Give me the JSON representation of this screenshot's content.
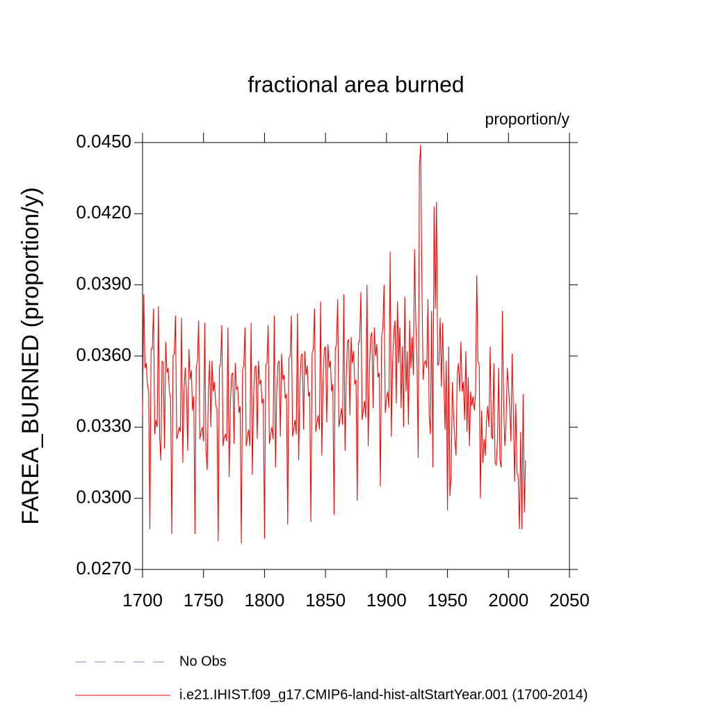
{
  "chart_data": {
    "type": "line",
    "title": "fractional area burned",
    "subtitle": "proportion/y",
    "y_label": "FAREA_BURNED  (proportion/y)",
    "xlim": [
      1700,
      2050
    ],
    "xticks": [
      1700,
      1750,
      1800,
      1850,
      1900,
      1950,
      2000,
      2050
    ],
    "ylim": [
      0.027,
      0.045
    ],
    "yticks": [
      {
        "value": 0.027,
        "label": "0.0270"
      },
      {
        "value": 0.03,
        "label": "0.0300"
      },
      {
        "value": 0.033,
        "label": "0.0330"
      },
      {
        "value": 0.036,
        "label": "0.0360"
      },
      {
        "value": 0.039,
        "label": "0.0390"
      },
      {
        "value": 0.042,
        "label": "0.0420"
      },
      {
        "value": 0.045,
        "label": "0.0450"
      }
    ],
    "x": [
      1700,
      1701,
      1702,
      1703,
      1704,
      1705,
      1706,
      1707,
      1708,
      1709,
      1710,
      1711,
      1712,
      1713,
      1714,
      1715,
      1716,
      1717,
      1718,
      1719,
      1720,
      1721,
      1722,
      1723,
      1724,
      1725,
      1726,
      1727,
      1728,
      1729,
      1730,
      1731,
      1732,
      1733,
      1734,
      1735,
      1736,
      1737,
      1738,
      1739,
      1740,
      1741,
      1742,
      1743,
      1744,
      1745,
      1746,
      1747,
      1748,
      1749,
      1750,
      1751,
      1752,
      1753,
      1754,
      1755,
      1756,
      1757,
      1758,
      1759,
      1760,
      1761,
      1762,
      1763,
      1764,
      1765,
      1766,
      1767,
      1768,
      1769,
      1770,
      1771,
      1772,
      1773,
      1774,
      1775,
      1776,
      1777,
      1778,
      1779,
      1780,
      1781,
      1782,
      1783,
      1784,
      1785,
      1786,
      1787,
      1788,
      1789,
      1790,
      1791,
      1792,
      1793,
      1794,
      1795,
      1796,
      1797,
      1798,
      1799,
      1800,
      1801,
      1802,
      1803,
      1804,
      1805,
      1806,
      1807,
      1808,
      1809,
      1810,
      1811,
      1812,
      1813,
      1814,
      1815,
      1816,
      1817,
      1818,
      1819,
      1820,
      1821,
      1822,
      1823,
      1824,
      1825,
      1826,
      1827,
      1828,
      1829,
      1830,
      1831,
      1832,
      1833,
      1834,
      1835,
      1836,
      1837,
      1838,
      1839,
      1840,
      1841,
      1842,
      1843,
      1844,
      1845,
      1846,
      1847,
      1848,
      1849,
      1850,
      1851,
      1852,
      1853,
      1854,
      1855,
      1856,
      1857,
      1858,
      1859,
      1860,
      1861,
      1862,
      1863,
      1864,
      1865,
      1866,
      1867,
      1868,
      1869,
      1870,
      1871,
      1872,
      1873,
      1874,
      1875,
      1876,
      1877,
      1878,
      1879,
      1880,
      1881,
      1882,
      1883,
      1884,
      1885,
      1886,
      1887,
      1888,
      1889,
      1890,
      1891,
      1892,
      1893,
      1894,
      1895,
      1896,
      1897,
      1898,
      1899,
      1900,
      1901,
      1902,
      1903,
      1904,
      1905,
      1906,
      1907,
      1908,
      1909,
      1910,
      1911,
      1912,
      1913,
      1914,
      1915,
      1916,
      1917,
      1918,
      1919,
      1920,
      1921,
      1922,
      1923,
      1924,
      1925,
      1926,
      1927,
      1928,
      1929,
      1930,
      1931,
      1932,
      1933,
      1934,
      1935,
      1936,
      1937,
      1938,
      1939,
      1940,
      1941,
      1942,
      1943,
      1944,
      1945,
      1946,
      1947,
      1948,
      1949,
      1950,
      1951,
      1952,
      1953,
      1954,
      1955,
      1956,
      1957,
      1958,
      1959,
      1960,
      1961,
      1962,
      1963,
      1964,
      1965,
      1966,
      1967,
      1968,
      1969,
      1970,
      1971,
      1972,
      1973,
      1974,
      1975,
      1976,
      1977,
      1978,
      1979,
      1980,
      1981,
      1982,
      1983,
      1984,
      1985,
      1986,
      1987,
      1988,
      1989,
      1990,
      1991,
      1992,
      1993,
      1994,
      1995,
      1996,
      1997,
      1998,
      1999,
      2000,
      2001,
      2002,
      2003,
      2004,
      2005,
      2006,
      2007,
      2008,
      2009,
      2010,
      2011,
      2012,
      2013,
      2014
    ],
    "series": [
      {
        "name": "No Obs",
        "color": "#8a84c4",
        "dash": true
      },
      {
        "name": "i.e21.IHIST.f09_g17.CMIP6-land-hist-altStartYear.001 (1700-2014)",
        "color": "#ff0000",
        "values": [
          0.0335,
          0.0386,
          0.0355,
          0.0357,
          0.0348,
          0.0345,
          0.0287,
          0.0363,
          0.0363,
          0.038,
          0.0327,
          0.0333,
          0.033,
          0.0381,
          0.0326,
          0.0316,
          0.0358,
          0.0357,
          0.0321,
          0.0366,
          0.0353,
          0.0355,
          0.0345,
          0.0342,
          0.0285,
          0.036,
          0.0361,
          0.0377,
          0.0325,
          0.0327,
          0.033,
          0.0328,
          0.0376,
          0.0315,
          0.0345,
          0.0355,
          0.0345,
          0.032,
          0.0363,
          0.035,
          0.0354,
          0.0337,
          0.0343,
          0.0285,
          0.0355,
          0.0358,
          0.0375,
          0.0325,
          0.0328,
          0.033,
          0.0324,
          0.0374,
          0.032,
          0.0312,
          0.0345,
          0.0358,
          0.033,
          0.0358,
          0.0345,
          0.0349,
          0.0339,
          0.0338,
          0.0282,
          0.0355,
          0.0357,
          0.0373,
          0.0322,
          0.0326,
          0.0327,
          0.0324,
          0.0372,
          0.0309,
          0.034,
          0.0352,
          0.0353,
          0.0323,
          0.0357,
          0.0346,
          0.0347,
          0.0336,
          0.0339,
          0.0281,
          0.0354,
          0.0356,
          0.0372,
          0.0322,
          0.0326,
          0.0329,
          0.0322,
          0.0374,
          0.031,
          0.0342,
          0.0355,
          0.0356,
          0.0325,
          0.0358,
          0.0348,
          0.035,
          0.034,
          0.0342,
          0.0283,
          0.0356,
          0.0357,
          0.0373,
          0.0323,
          0.0327,
          0.033,
          0.0325,
          0.0377,
          0.0313,
          0.0345,
          0.0357,
          0.0358,
          0.0326,
          0.0361,
          0.035,
          0.0352,
          0.0342,
          0.0344,
          0.0289,
          0.0359,
          0.036,
          0.0377,
          0.0326,
          0.0329,
          0.0333,
          0.0327,
          0.0378,
          0.0316,
          0.0347,
          0.036,
          0.0361,
          0.0329,
          0.0362,
          0.0352,
          0.0356,
          0.0343,
          0.0345,
          0.029,
          0.0361,
          0.0363,
          0.038,
          0.0328,
          0.0332,
          0.0335,
          0.0329,
          0.0383,
          0.0318,
          0.0349,
          0.0363,
          0.0364,
          0.0332,
          0.0365,
          0.0355,
          0.0358,
          0.0345,
          0.0348,
          0.0293,
          0.0363,
          0.0365,
          0.0384,
          0.033,
          0.0334,
          0.0338,
          0.0331,
          0.0386,
          0.032,
          0.0351,
          0.0366,
          0.0367,
          0.0335,
          0.0368,
          0.0357,
          0.0362,
          0.0348,
          0.035,
          0.0299,
          0.0365,
          0.0367,
          0.0387,
          0.0333,
          0.0337,
          0.0341,
          0.0334,
          0.039,
          0.0322,
          0.0354,
          0.0368,
          0.037,
          0.0338,
          0.0372,
          0.036,
          0.0365,
          0.0351,
          0.0353,
          0.0305,
          0.0368,
          0.0372,
          0.039,
          0.0336,
          0.0342,
          0.0345,
          0.0338,
          0.0404,
          0.0326,
          0.0357,
          0.037,
          0.0375,
          0.034,
          0.0383,
          0.0357,
          0.0372,
          0.0338,
          0.0364,
          0.033,
          0.0385,
          0.0345,
          0.0362,
          0.0331,
          0.0375,
          0.0355,
          0.0368,
          0.0352,
          0.0405,
          0.0375,
          0.0358,
          0.0317,
          0.044,
          0.0449,
          0.0392,
          0.035,
          0.0357,
          0.0358,
          0.0355,
          0.0384,
          0.0335,
          0.0327,
          0.0379,
          0.0313,
          0.0423,
          0.038,
          0.0425,
          0.0356,
          0.0357,
          0.0376,
          0.0347,
          0.0374,
          0.035,
          0.0329,
          0.0358,
          0.0295,
          0.0364,
          0.0301,
          0.031,
          0.0349,
          0.0335,
          0.0325,
          0.0318,
          0.0352,
          0.0357,
          0.0345,
          0.0366,
          0.0345,
          0.0349,
          0.0333,
          0.0362,
          0.0328,
          0.0351,
          0.0322,
          0.0345,
          0.0339,
          0.0343,
          0.0337,
          0.0344,
          0.0394,
          0.0358,
          0.0356,
          0.03,
          0.0337,
          0.0315,
          0.0325,
          0.0318,
          0.0333,
          0.0339,
          0.033,
          0.0364,
          0.0326,
          0.0325,
          0.0357,
          0.0315,
          0.0314,
          0.0325,
          0.0355,
          0.0316,
          0.0313,
          0.0379,
          0.0341,
          0.0322,
          0.0331,
          0.0355,
          0.0347,
          0.0339,
          0.0324,
          0.0361,
          0.0337,
          0.0307,
          0.034,
          0.0311,
          0.0309,
          0.0287,
          0.0328,
          0.0287,
          0.0344,
          0.0294,
          0.0316
        ]
      }
    ]
  }
}
